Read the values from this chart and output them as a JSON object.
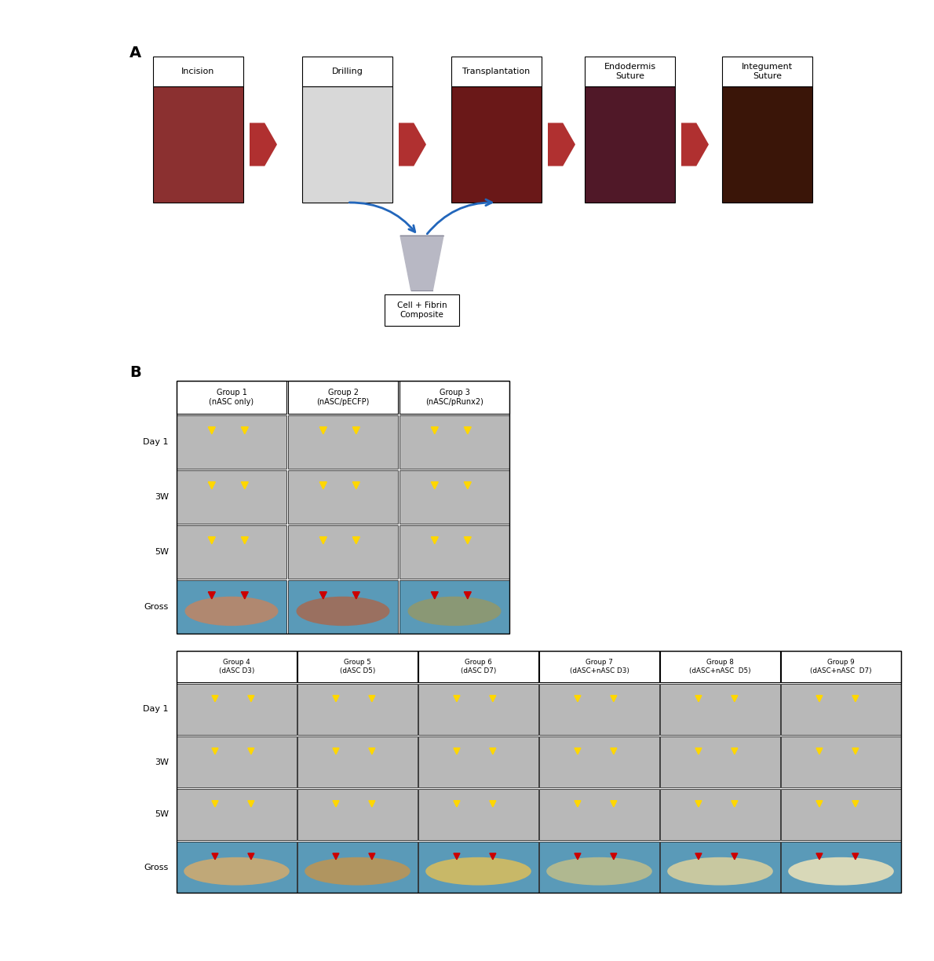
{
  "panel_A_label": "A",
  "panel_B_label": "B",
  "step_labels": [
    "Incision",
    "Drilling",
    "Transplantation",
    "Endodermis\nSuture",
    "Integument\nSuture"
  ],
  "cell_fibrin_label": "Cell + Fibrin\nComposite",
  "group1_labels": [
    "Group 1\n(nASC only)",
    "Group 2\n(nASC/pECFP)",
    "Group 3\n(nASC/pRunx2)"
  ],
  "group2_labels": [
    "Group 4\n(dASC D3)",
    "Group 5\n(dASC D5)",
    "Group 6\n(dASC D7)",
    "Group 7\n(dASC+nASC D3)",
    "Group 8\n(dASC+nASC  D5)",
    "Group 9\n(dASC+nASC  D7)"
  ],
  "row_labels": [
    "Day 1",
    "3W",
    "5W",
    "Gross"
  ],
  "bg_color": "#ffffff",
  "step_photo_colors": [
    "#8B3030",
    "#d8d8d8",
    "#6a1818",
    "#501828",
    "#3a1508"
  ],
  "yellow_arrow": "#FFD700",
  "red_arrow": "#CC0000",
  "xray_color": "#b8b8b8",
  "gross_bg_top": [
    "#5a9ab8",
    "#5a9ab8",
    "#5a9ab8"
  ],
  "gross_bone_top": [
    "#b08870",
    "#9a7060",
    "#8a9875"
  ],
  "gross_bg_bot": [
    "#5a9ab8",
    "#5a9ab8",
    "#5a9ab8",
    "#5a9ab8",
    "#5a9ab8",
    "#5a9ab8"
  ],
  "gross_bone_bot": [
    "#c0a878",
    "#b09560",
    "#c8b868",
    "#b0b890",
    "#c8c8a0",
    "#d8d8b8"
  ],
  "step_fontsize": 8,
  "group_fontsize": 7,
  "row_fontsize": 8
}
